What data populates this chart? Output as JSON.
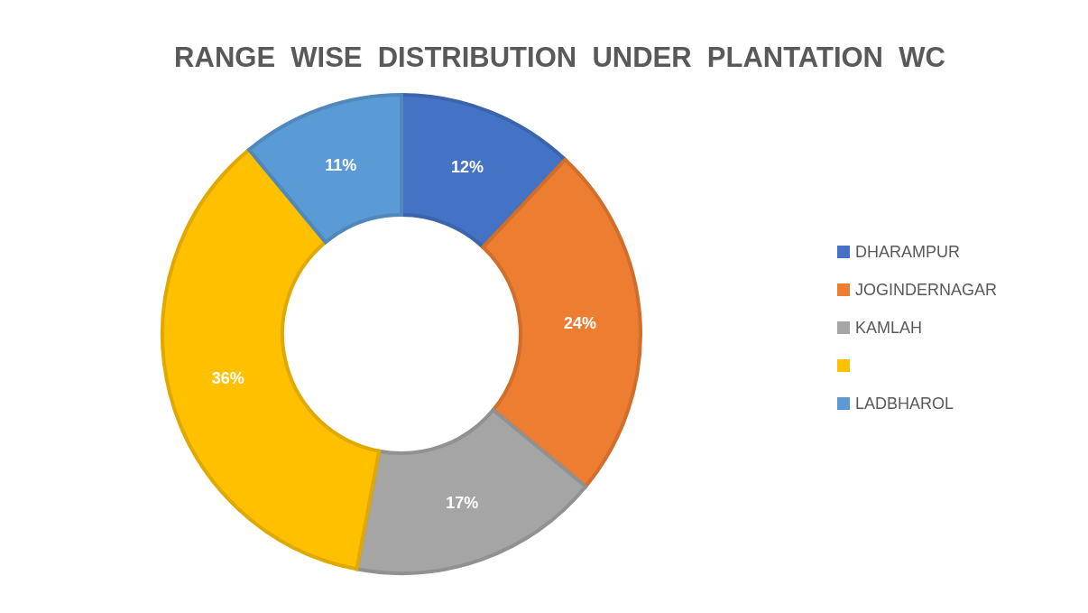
{
  "chart_data": {
    "type": "donut",
    "title": "RANGE  WISE  DISTRIBUTION  UNDER  PLANTATION  WC",
    "categories": [
      "DHARAMPUR",
      "JOGINDERNAGAR",
      "KAMLAH",
      null,
      "LADBHAROL"
    ],
    "values": [
      12,
      24,
      17,
      36,
      11
    ],
    "colors": [
      "#4472c4",
      "#ed7d31",
      "#a5a5a5",
      "#ffc000",
      "#5b9bd5"
    ],
    "value_labels": [
      "12%",
      "24%",
      "17%",
      "36%",
      "11%"
    ],
    "legend": "right"
  }
}
